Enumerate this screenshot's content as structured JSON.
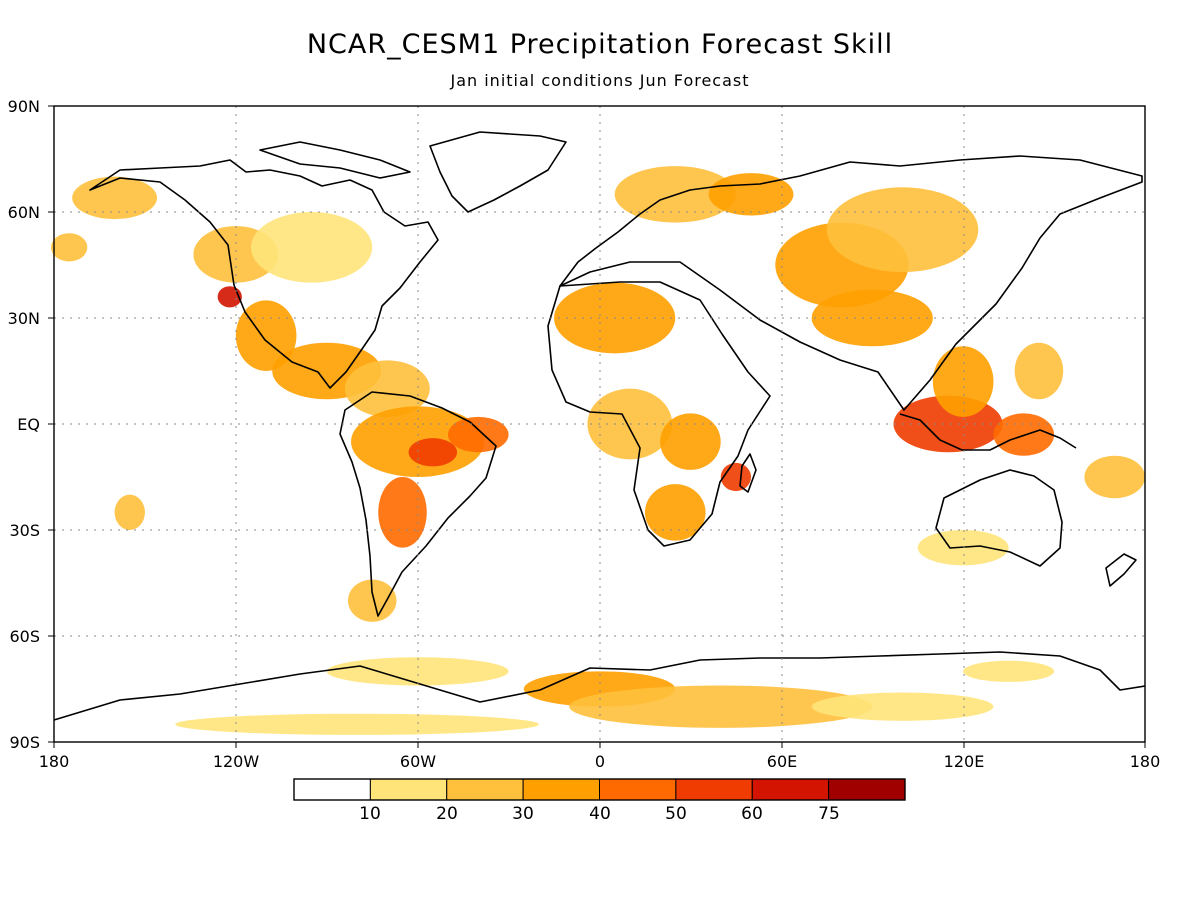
{
  "title": "NCAR_CESM1 Precipitation Forecast Skill",
  "subtitle": "Jan initial conditions  Jun Forecast",
  "lat_labels": [
    "90N",
    "60N",
    "30N",
    "EQ",
    "30S",
    "60S",
    "90S"
  ],
  "lon_labels": [
    "180",
    "120W",
    "60W",
    "0",
    "60E",
    "120E",
    "180"
  ],
  "colorbar": {
    "labels": [
      "10",
      "20",
      "30",
      "40",
      "50",
      "60",
      "75"
    ],
    "colors": [
      "#ffffff",
      "#ffe47a",
      "#ffc03c",
      "#ffa000",
      "#ff6a00",
      "#f03c00",
      "#d21400",
      "#a00000"
    ]
  },
  "skill_regions": [
    {
      "lon": -160,
      "lat": 64,
      "rx": 14,
      "ry": 6,
      "level": 2
    },
    {
      "lon": -175,
      "lat": 50,
      "rx": 6,
      "ry": 4,
      "level": 2
    },
    {
      "lon": -120,
      "lat": 48,
      "rx": 14,
      "ry": 8,
      "level": 2
    },
    {
      "lon": -122,
      "lat": 36,
      "rx": 4,
      "ry": 3,
      "level": 6
    },
    {
      "lon": -95,
      "lat": 50,
      "rx": 20,
      "ry": 10,
      "level": 1
    },
    {
      "lon": -110,
      "lat": 25,
      "rx": 10,
      "ry": 10,
      "level": 3
    },
    {
      "lon": -90,
      "lat": 15,
      "rx": 18,
      "ry": 8,
      "level": 3
    },
    {
      "lon": -70,
      "lat": 10,
      "rx": 14,
      "ry": 8,
      "level": 2
    },
    {
      "lon": -60,
      "lat": -5,
      "rx": 22,
      "ry": 10,
      "level": 3
    },
    {
      "lon": -55,
      "lat": -8,
      "rx": 8,
      "ry": 4,
      "level": 5
    },
    {
      "lon": -40,
      "lat": -3,
      "rx": 10,
      "ry": 5,
      "level": 4
    },
    {
      "lon": -65,
      "lat": -25,
      "rx": 8,
      "ry": 10,
      "level": 4
    },
    {
      "lon": -75,
      "lat": -50,
      "rx": 8,
      "ry": 6,
      "level": 2
    },
    {
      "lon": 5,
      "lat": 30,
      "rx": 20,
      "ry": 10,
      "level": 3
    },
    {
      "lon": 25,
      "lat": 65,
      "rx": 20,
      "ry": 8,
      "level": 2
    },
    {
      "lon": 50,
      "lat": 65,
      "rx": 14,
      "ry": 6,
      "level": 3
    },
    {
      "lon": 10,
      "lat": 0,
      "rx": 14,
      "ry": 10,
      "level": 2
    },
    {
      "lon": 30,
      "lat": -5,
      "rx": 10,
      "ry": 8,
      "level": 3
    },
    {
      "lon": 25,
      "lat": -25,
      "rx": 10,
      "ry": 8,
      "level": 3
    },
    {
      "lon": 45,
      "lat": -15,
      "rx": 5,
      "ry": 4,
      "level": 5
    },
    {
      "lon": 80,
      "lat": 45,
      "rx": 22,
      "ry": 12,
      "level": 3
    },
    {
      "lon": 100,
      "lat": 55,
      "rx": 25,
      "ry": 12,
      "level": 2
    },
    {
      "lon": 90,
      "lat": 30,
      "rx": 20,
      "ry": 8,
      "level": 3
    },
    {
      "lon": 115,
      "lat": 0,
      "rx": 18,
      "ry": 8,
      "level": 5
    },
    {
      "lon": 120,
      "lat": 12,
      "rx": 10,
      "ry": 10,
      "level": 3
    },
    {
      "lon": 140,
      "lat": -3,
      "rx": 10,
      "ry": 6,
      "level": 4
    },
    {
      "lon": 145,
      "lat": 15,
      "rx": 8,
      "ry": 8,
      "level": 2
    },
    {
      "lon": 170,
      "lat": -15,
      "rx": 10,
      "ry": 6,
      "level": 2
    },
    {
      "lon": 120,
      "lat": -35,
      "rx": 15,
      "ry": 5,
      "level": 1
    },
    {
      "lon": -155,
      "lat": -25,
      "rx": 5,
      "ry": 5,
      "level": 2
    },
    {
      "lon": 0,
      "lat": -75,
      "rx": 25,
      "ry": 5,
      "level": 3
    },
    {
      "lon": 40,
      "lat": -80,
      "rx": 50,
      "ry": 6,
      "level": 2
    },
    {
      "lon": -60,
      "lat": -70,
      "rx": 30,
      "ry": 4,
      "level": 1
    },
    {
      "lon": 100,
      "lat": -80,
      "rx": 30,
      "ry": 4,
      "level": 1
    },
    {
      "lon": -80,
      "lat": -85,
      "rx": 60,
      "ry": 3,
      "level": 1
    },
    {
      "lon": 135,
      "lat": -70,
      "rx": 15,
      "ry": 3,
      "level": 1
    }
  ]
}
